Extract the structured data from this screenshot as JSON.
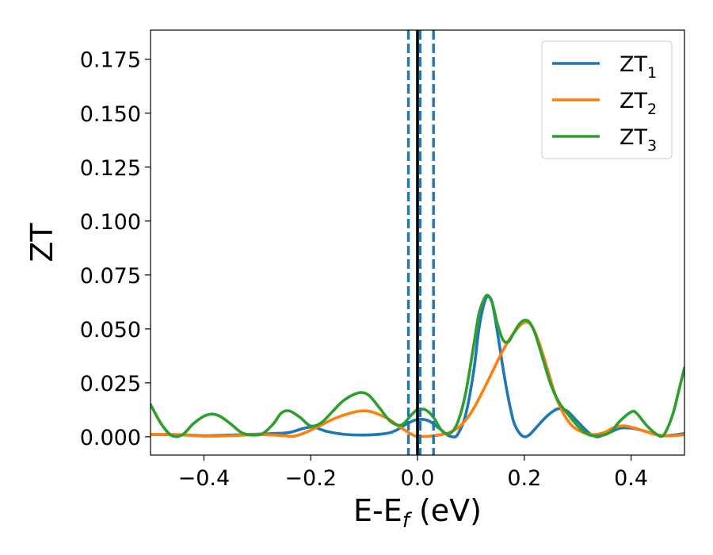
{
  "chart_data": {
    "type": "line",
    "xlabel": {
      "main": "E-E",
      "sub": "f",
      "unit": " (eV)"
    },
    "ylabel": "ZT",
    "xlim": [
      -0.5,
      0.5
    ],
    "ylim": [
      -0.0085,
      0.1885
    ],
    "xticks": [
      -0.4,
      -0.2,
      0.0,
      0.2,
      0.4
    ],
    "xtick_labels": [
      "−0.4",
      "−0.2",
      "0.0",
      "0.2",
      "0.4"
    ],
    "yticks": [
      0.0,
      0.025,
      0.05,
      0.075,
      0.1,
      0.125,
      0.15,
      0.175
    ],
    "ytick_labels": [
      "0.000",
      "0.025",
      "0.050",
      "0.075",
      "0.100",
      "0.125",
      "0.150",
      "0.175"
    ],
    "grid": false,
    "legend_position": "top-right",
    "vlines": [
      {
        "x": 0.0,
        "style": "solid",
        "color": "#000000"
      },
      {
        "x": -0.017,
        "style": "dashed",
        "color": "#1f77b4"
      },
      {
        "x": 0.005,
        "style": "dashed",
        "color": "#1f77b4"
      },
      {
        "x": 0.03,
        "style": "dashed",
        "color": "#1f77b4"
      }
    ],
    "series": [
      {
        "name": "ZT",
        "name_sub": "1",
        "color": "#1f77b4",
        "points": [
          [
            -0.5,
            0.001
          ],
          [
            -0.45,
            0.001
          ],
          [
            -0.4,
            0.0005
          ],
          [
            -0.35,
            0.0008
          ],
          [
            -0.3,
            0.0012
          ],
          [
            -0.27,
            0.0015
          ],
          [
            -0.24,
            0.002
          ],
          [
            -0.2,
            0.0045
          ],
          [
            -0.17,
            0.0025
          ],
          [
            -0.14,
            0.0012
          ],
          [
            -0.1,
            0.0008
          ],
          [
            -0.06,
            0.0015
          ],
          [
            -0.04,
            0.003
          ],
          [
            -0.02,
            0.006
          ],
          [
            0.0,
            0.008
          ],
          [
            0.02,
            0.0075
          ],
          [
            0.04,
            0.004
          ],
          [
            0.055,
            0.001
          ],
          [
            0.065,
            0.0
          ],
          [
            0.075,
            0.001
          ],
          [
            0.09,
            0.01
          ],
          [
            0.105,
            0.03
          ],
          [
            0.115,
            0.05
          ],
          [
            0.125,
            0.062
          ],
          [
            0.132,
            0.065
          ],
          [
            0.14,
            0.062
          ],
          [
            0.15,
            0.048
          ],
          [
            0.16,
            0.032
          ],
          [
            0.17,
            0.018
          ],
          [
            0.18,
            0.007
          ],
          [
            0.19,
            0.002
          ],
          [
            0.2,
            0.0
          ],
          [
            0.21,
            0.001
          ],
          [
            0.225,
            0.005
          ],
          [
            0.24,
            0.009
          ],
          [
            0.255,
            0.012
          ],
          [
            0.265,
            0.013
          ],
          [
            0.28,
            0.012
          ],
          [
            0.3,
            0.007
          ],
          [
            0.32,
            0.002
          ],
          [
            0.335,
            0.0
          ],
          [
            0.345,
            0.0005
          ],
          [
            0.36,
            0.002
          ],
          [
            0.38,
            0.004
          ],
          [
            0.4,
            0.004
          ],
          [
            0.42,
            0.003
          ],
          [
            0.44,
            0.0015
          ],
          [
            0.46,
            0.0005
          ],
          [
            0.48,
            0.0008
          ],
          [
            0.5,
            0.0015
          ]
        ]
      },
      {
        "name": "ZT",
        "name_sub": "2",
        "color": "#ff7f0e",
        "points": [
          [
            -0.5,
            0.001
          ],
          [
            -0.45,
            0.001
          ],
          [
            -0.4,
            0.0003
          ],
          [
            -0.35,
            0.0005
          ],
          [
            -0.3,
            0.001
          ],
          [
            -0.27,
            0.0008
          ],
          [
            -0.25,
            0.0005
          ],
          [
            -0.23,
            0.0003
          ],
          [
            -0.2,
            0.003
          ],
          [
            -0.15,
            0.009
          ],
          [
            -0.1,
            0.012
          ],
          [
            -0.06,
            0.009
          ],
          [
            -0.03,
            0.004
          ],
          [
            -0.01,
            0.001
          ],
          [
            0.0,
            0.0002
          ],
          [
            0.02,
            0.0002
          ],
          [
            0.04,
            0.0008
          ],
          [
            0.06,
            0.002
          ],
          [
            0.08,
            0.005
          ],
          [
            0.1,
            0.011
          ],
          [
            0.12,
            0.02
          ],
          [
            0.14,
            0.03
          ],
          [
            0.16,
            0.04
          ],
          [
            0.18,
            0.048
          ],
          [
            0.2,
            0.053
          ],
          [
            0.215,
            0.051
          ],
          [
            0.23,
            0.042
          ],
          [
            0.245,
            0.03
          ],
          [
            0.26,
            0.018
          ],
          [
            0.275,
            0.01
          ],
          [
            0.29,
            0.005
          ],
          [
            0.31,
            0.002
          ],
          [
            0.33,
            0.001
          ],
          [
            0.35,
            0.002
          ],
          [
            0.37,
            0.0045
          ],
          [
            0.39,
            0.005
          ],
          [
            0.42,
            0.003
          ],
          [
            0.45,
            0.0008
          ],
          [
            0.48,
            0.0005
          ],
          [
            0.5,
            0.001
          ]
        ]
      },
      {
        "name": "ZT",
        "name_sub": "3",
        "color": "#2ca02c",
        "points": [
          [
            -0.5,
            0.015
          ],
          [
            -0.48,
            0.006
          ],
          [
            -0.46,
            0.0005
          ],
          [
            -0.44,
            0.001
          ],
          [
            -0.42,
            0.006
          ],
          [
            -0.4,
            0.0095
          ],
          [
            -0.385,
            0.0105
          ],
          [
            -0.37,
            0.0095
          ],
          [
            -0.35,
            0.006
          ],
          [
            -0.33,
            0.002
          ],
          [
            -0.31,
            0.0008
          ],
          [
            -0.29,
            0.0015
          ],
          [
            -0.27,
            0.006
          ],
          [
            -0.255,
            0.011
          ],
          [
            -0.24,
            0.012
          ],
          [
            -0.22,
            0.009
          ],
          [
            -0.2,
            0.005
          ],
          [
            -0.18,
            0.0065
          ],
          [
            -0.16,
            0.0115
          ],
          [
            -0.14,
            0.0165
          ],
          [
            -0.12,
            0.0195
          ],
          [
            -0.105,
            0.0205
          ],
          [
            -0.09,
            0.019
          ],
          [
            -0.07,
            0.013
          ],
          [
            -0.05,
            0.007
          ],
          [
            -0.03,
            0.0055
          ],
          [
            -0.01,
            0.0105
          ],
          [
            0.0,
            0.0125
          ],
          [
            0.015,
            0.0125
          ],
          [
            0.03,
            0.009
          ],
          [
            0.045,
            0.003
          ],
          [
            0.06,
            0.0015
          ],
          [
            0.075,
            0.0065
          ],
          [
            0.09,
            0.02
          ],
          [
            0.105,
            0.042
          ],
          [
            0.115,
            0.057
          ],
          [
            0.125,
            0.064
          ],
          [
            0.132,
            0.0655
          ],
          [
            0.14,
            0.062
          ],
          [
            0.15,
            0.052
          ],
          [
            0.16,
            0.045
          ],
          [
            0.17,
            0.044
          ],
          [
            0.18,
            0.048
          ],
          [
            0.19,
            0.052
          ],
          [
            0.2,
            0.054
          ],
          [
            0.21,
            0.053
          ],
          [
            0.22,
            0.048
          ],
          [
            0.235,
            0.036
          ],
          [
            0.25,
            0.024
          ],
          [
            0.265,
            0.016
          ],
          [
            0.28,
            0.011
          ],
          [
            0.3,
            0.005
          ],
          [
            0.32,
            0.001
          ],
          [
            0.34,
            0.0005
          ],
          [
            0.36,
            0.002
          ],
          [
            0.38,
            0.0075
          ],
          [
            0.4,
            0.0115
          ],
          [
            0.41,
            0.011
          ],
          [
            0.43,
            0.005
          ],
          [
            0.45,
            0.0008
          ],
          [
            0.46,
            0.0005
          ],
          [
            0.47,
            0.005
          ],
          [
            0.48,
            0.012
          ],
          [
            0.49,
            0.022
          ],
          [
            0.5,
            0.032
          ]
        ]
      }
    ]
  }
}
